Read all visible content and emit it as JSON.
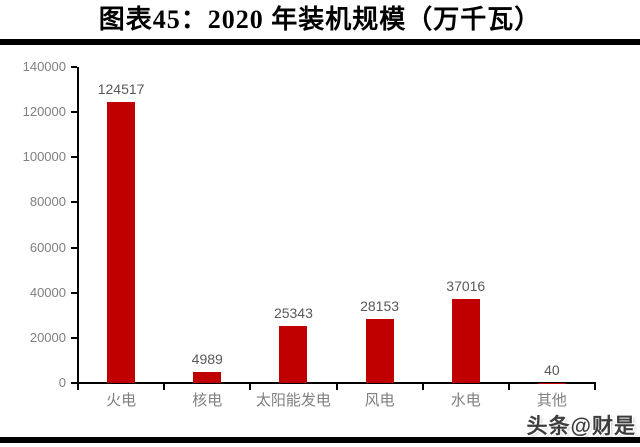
{
  "chart_data": {
    "type": "bar",
    "title": "图表45：2020 年装机规模（万千瓦）",
    "categories": [
      "火电",
      "核电",
      "太阳能发电",
      "风电",
      "水电",
      "其他"
    ],
    "values": [
      124517,
      4989,
      25343,
      28153,
      37016,
      40
    ],
    "data_labels": [
      "124517",
      "4989",
      "25343",
      "28153",
      "37016",
      "40"
    ],
    "xlabel": "",
    "ylabel": "",
    "ylim": [
      0,
      140000
    ],
    "ytick_interval": 20000,
    "ytick_labels": [
      "0",
      "20000",
      "40000",
      "60000",
      "80000",
      "100000",
      "120000",
      "140000"
    ],
    "grid": false,
    "legend": "none",
    "bar_color": "#c00000",
    "axis_color": "#000000",
    "tick_label_color": "#7f7f7f",
    "value_label_color": "#595959"
  },
  "watermark": {
    "text": "头条@财是"
  }
}
